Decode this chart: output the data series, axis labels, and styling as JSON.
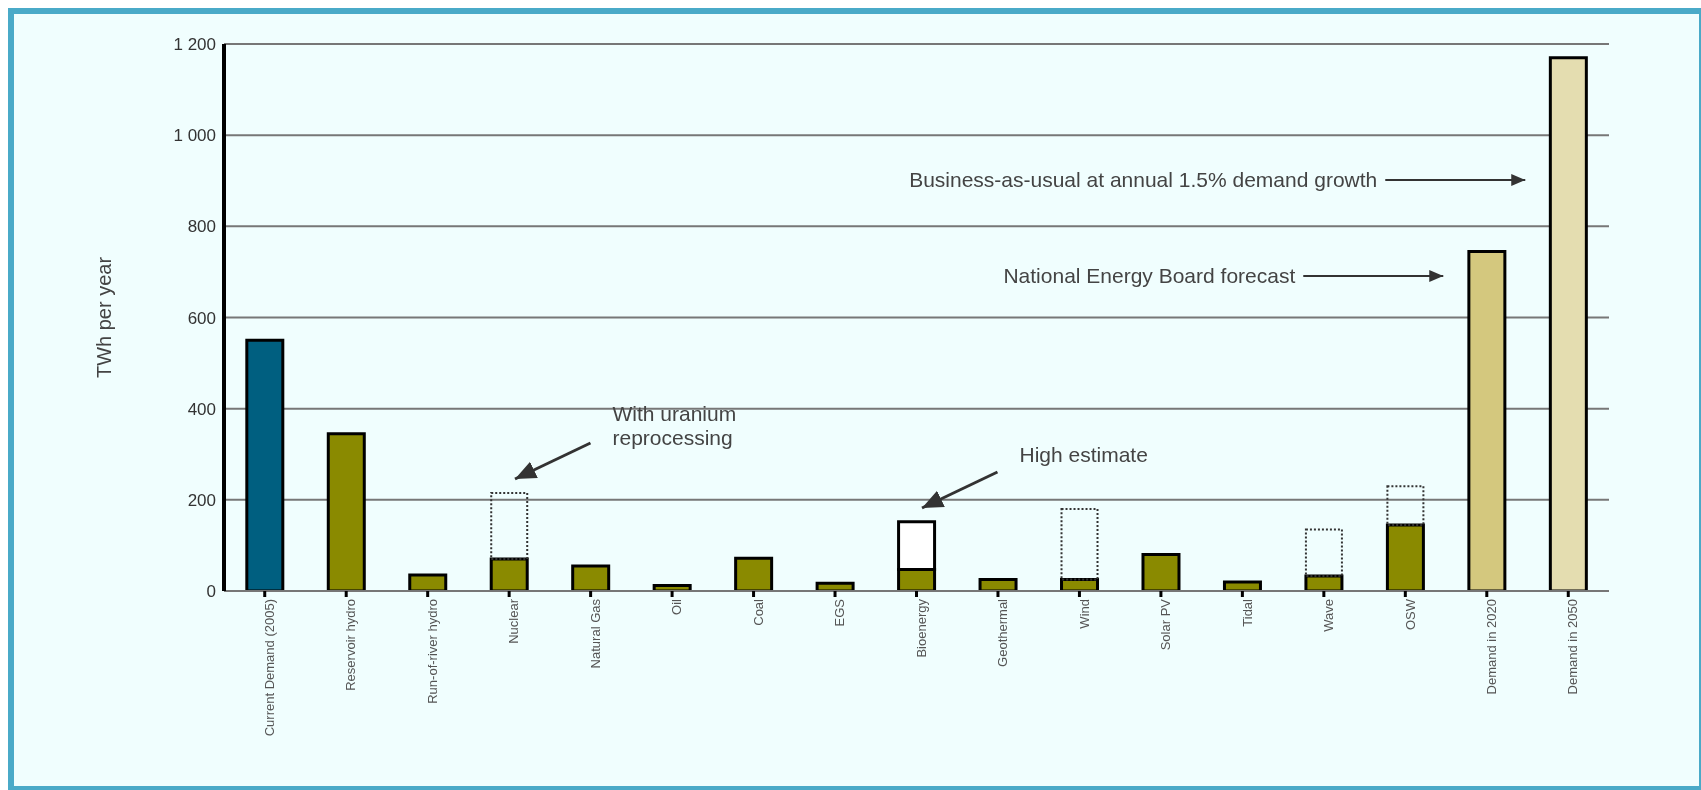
{
  "chart_data": {
    "type": "bar",
    "stacked": true,
    "ylabel": "TWh per year",
    "categories": [
      "Current Demand (2005)",
      "Reservoir hydro",
      "Run-of-river hydro",
      "Nuclear",
      "Natural Gas",
      "Oil",
      "Coal",
      "EGS",
      "Bioenergy",
      "Geothermal",
      "Wind",
      "Solar PV",
      "Tidal",
      "Wave",
      "OSW",
      "Demand in 2020",
      "Demand in 2050"
    ],
    "series": [
      {
        "colors": [
          "#005f80",
          "#8a8a00",
          "#8a8a00",
          "#8a8a00",
          "#8a8a00",
          "#8a8a00",
          "#8a8a00",
          "#8a8a00",
          "#8a8a00",
          "#8a8a00",
          "#8a8a00",
          "#8a8a00",
          "#8a8a00",
          "#8a8a00",
          "#8a8a00",
          "#d4c87e",
          "#e4ddb0"
        ],
        "values": [
          550,
          345,
          35,
          70,
          55,
          12,
          72,
          17,
          47,
          25,
          25,
          80,
          20,
          33,
          145,
          745,
          1170
        ]
      },
      {
        "color": "#ffffff",
        "values": [
          null,
          null,
          null,
          null,
          null,
          null,
          null,
          null,
          105,
          null,
          null,
          null,
          null,
          null,
          null,
          null,
          null
        ]
      },
      {
        "color": "#333333",
        "line_style": "dotted",
        "values": [
          null,
          null,
          null,
          145,
          null,
          null,
          null,
          null,
          null,
          null,
          155,
          null,
          null,
          102,
          85,
          null,
          null
        ]
      }
    ],
    "ylim": [
      0,
      1200
    ],
    "yticks": [
      0,
      200,
      400,
      600,
      800,
      {
        "value": 1000,
        "label": "1 000"
      },
      {
        "value": 1200,
        "label": "1 200"
      }
    ],
    "grid": "y",
    "annotations": [
      "With uranium reprocessing",
      "High estimate",
      "Business-as-usual at annual 1.5% demand growth",
      "National Energy Board forecast"
    ]
  }
}
